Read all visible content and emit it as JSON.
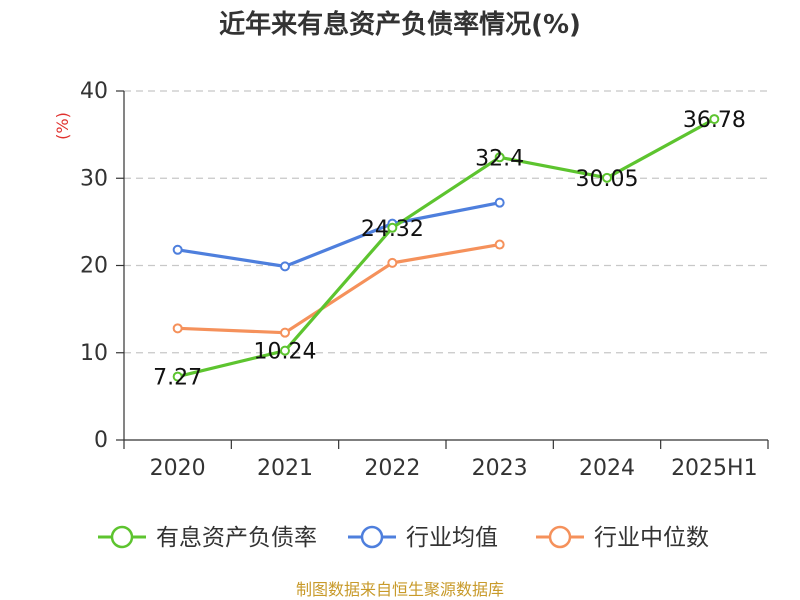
{
  "title": "近年来有息资产负债率情况(%)",
  "source": "制图数据来自恒生聚源数据库",
  "chart_data": {
    "type": "line",
    "categories": [
      "2020",
      "2021",
      "2022",
      "2023",
      "2024",
      "2025H1"
    ],
    "ylabel": "(%)",
    "ylim": [
      0,
      40
    ],
    "yticks": [
      0,
      10,
      20,
      30,
      40
    ],
    "grid": true,
    "legend_position": "bottom",
    "series": [
      {
        "name": "有息资产负债率",
        "color": "#5dc42f",
        "values": [
          7.27,
          10.24,
          24.32,
          32.4,
          30.05,
          36.78
        ],
        "labels": [
          "7.27",
          "10.24",
          "24.32",
          "32.4",
          "30.05",
          "36.78"
        ]
      },
      {
        "name": "行业均值",
        "color": "#4e7fdd",
        "values": [
          21.8,
          19.9,
          24.8,
          27.2,
          null,
          null
        ]
      },
      {
        "name": "行业中位数",
        "color": "#f5915b",
        "values": [
          12.8,
          12.3,
          20.3,
          22.4,
          null,
          null
        ]
      }
    ]
  }
}
